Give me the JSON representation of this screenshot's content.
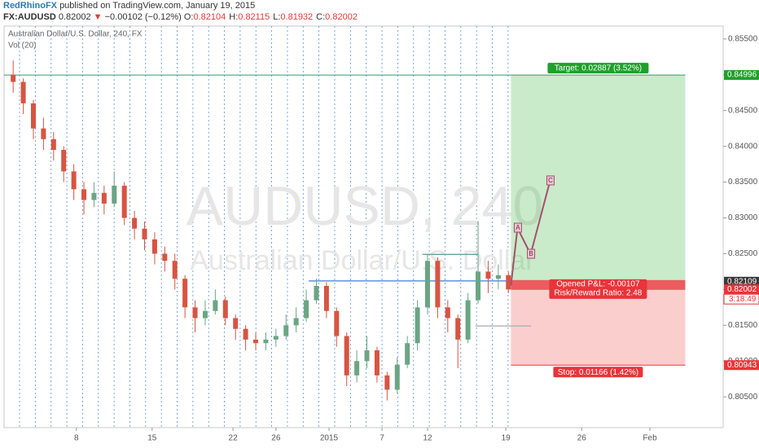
{
  "header": {
    "author": "RedRhinoFX",
    "published": "published on TradingView.com, January 19, 2015",
    "symbol": "FX:AUDUSD",
    "last": "0.82002",
    "arrow": "▼",
    "change": "−0.00102 (−0.12%)",
    "ohlc": [
      {
        "key": "O:",
        "value": "0.82104"
      },
      {
        "key": "H:",
        "value": "0.82115"
      },
      {
        "key": "L:",
        "value": "0.81932"
      },
      {
        "key": "C:",
        "value": "0.82002"
      }
    ]
  },
  "chart_data": {
    "type": "candlestick",
    "title": "Australian Dollar/U.S. Dollar, 240, FX",
    "indicator": "Vol (20)",
    "watermark": "AUDUSD, 240",
    "watermark_subtitle": "Australian Dollar/U.S. Dollar",
    "x": [
      2,
      6,
      10,
      14,
      18,
      22,
      26,
      30,
      34,
      38,
      42,
      46,
      50,
      54,
      58,
      62,
      66,
      70,
      74,
      78,
      82,
      86,
      90,
      94,
      98,
      102,
      106,
      110,
      114,
      118,
      122,
      126,
      130,
      134,
      138,
      142,
      146,
      150,
      154,
      158,
      162,
      166,
      170,
      174,
      178,
      182,
      186,
      190,
      194,
      198
    ],
    "open": [
      0.85,
      0.849,
      0.846,
      0.8425,
      0.841,
      0.8395,
      0.8365,
      0.834,
      0.8325,
      0.8335,
      0.832,
      0.8345,
      0.83,
      0.8285,
      0.827,
      0.825,
      0.824,
      0.8215,
      0.8175,
      0.816,
      0.817,
      0.8185,
      0.816,
      0.8145,
      0.813,
      0.8125,
      0.813,
      0.8135,
      0.815,
      0.816,
      0.8185,
      0.8205,
      0.817,
      0.8135,
      0.808,
      0.81,
      0.8115,
      0.808,
      0.806,
      0.8095,
      0.8125,
      0.8175,
      0.824,
      0.8175,
      0.816,
      0.813,
      0.8185,
      0.8225,
      0.8215,
      0.822
    ],
    "high": [
      0.852,
      0.8495,
      0.8465,
      0.844,
      0.842,
      0.84,
      0.8375,
      0.835,
      0.835,
      0.8345,
      0.8365,
      0.835,
      0.831,
      0.8295,
      0.828,
      0.826,
      0.825,
      0.822,
      0.8185,
      0.8185,
      0.82,
      0.819,
      0.8165,
      0.815,
      0.814,
      0.814,
      0.8145,
      0.8165,
      0.8175,
      0.82,
      0.8215,
      0.821,
      0.8175,
      0.814,
      0.8115,
      0.8135,
      0.812,
      0.8085,
      0.8105,
      0.8135,
      0.8185,
      0.825,
      0.8245,
      0.8185,
      0.8165,
      0.8195,
      0.8295,
      0.824,
      0.8235,
      0.8225
    ],
    "low": [
      0.8475,
      0.8445,
      0.841,
      0.8395,
      0.838,
      0.835,
      0.8325,
      0.8305,
      0.8315,
      0.8305,
      0.8315,
      0.829,
      0.827,
      0.8255,
      0.8235,
      0.8225,
      0.82,
      0.816,
      0.814,
      0.815,
      0.8165,
      0.815,
      0.813,
      0.8115,
      0.8115,
      0.8115,
      0.812,
      0.813,
      0.814,
      0.8155,
      0.818,
      0.816,
      0.812,
      0.8065,
      0.807,
      0.809,
      0.807,
      0.8045,
      0.8055,
      0.809,
      0.8115,
      0.8165,
      0.816,
      0.814,
      0.809,
      0.8125,
      0.818,
      0.8195,
      0.82,
      0.8195
    ],
    "close": [
      0.849,
      0.846,
      0.8425,
      0.841,
      0.8395,
      0.8365,
      0.834,
      0.8325,
      0.8335,
      0.832,
      0.8345,
      0.83,
      0.8285,
      0.827,
      0.825,
      0.824,
      0.8215,
      0.8175,
      0.816,
      0.817,
      0.8185,
      0.816,
      0.8145,
      0.813,
      0.8125,
      0.813,
      0.8135,
      0.815,
      0.816,
      0.8185,
      0.8205,
      0.817,
      0.8135,
      0.808,
      0.81,
      0.8115,
      0.808,
      0.806,
      0.8095,
      0.8125,
      0.8175,
      0.824,
      0.8175,
      0.816,
      0.813,
      0.8185,
      0.8225,
      0.8215,
      0.822,
      0.82
    ],
    "up_color": "#6ba583",
    "down_color": "#d75442",
    "xlim": [
      -1.6,
      283
    ],
    "xticks": [
      {
        "value": 27,
        "label": "8"
      },
      {
        "value": 57,
        "label": "15"
      },
      {
        "value": 89,
        "label": "22"
      },
      {
        "value": 106,
        "label": "26"
      },
      {
        "value": 127,
        "label": "2015"
      },
      {
        "value": 148,
        "label": "7"
      },
      {
        "value": 166,
        "label": "12"
      },
      {
        "value": 197,
        "label": "19"
      },
      {
        "value": 227,
        "label": "26"
      },
      {
        "value": 254,
        "label": "Feb"
      }
    ],
    "ylim": [
      0.8007,
      0.8568
    ],
    "yticks": [
      {
        "value": 0.855,
        "label": "0.85500"
      },
      {
        "value": 0.85,
        "label": "0.85000"
      },
      {
        "value": 0.845,
        "label": "0.84500"
      },
      {
        "value": 0.84,
        "label": "0.84000"
      },
      {
        "value": 0.835,
        "label": "0.83500"
      },
      {
        "value": 0.83,
        "label": "0.83000"
      },
      {
        "value": 0.825,
        "label": "0.82500"
      },
      {
        "value": 0.82,
        "label": "0.82000"
      },
      {
        "value": 0.815,
        "label": "0.81500"
      },
      {
        "value": 0.81,
        "label": "0.81000"
      },
      {
        "value": 0.805,
        "label": "0.80500"
      }
    ],
    "position": {
      "x": [
        199,
        268
      ],
      "entry": 0.82109,
      "target": 0.84996,
      "stop": 0.80943,
      "target_label": "Target: 0.02887 (3.52%)",
      "stop_label": "Stop: 0.01166 (1.42%)",
      "pnl_label": "Opened P&L: -0.00107",
      "rr_label": "Risk/Reward Ratio: 2.48"
    },
    "levels": [
      {
        "y": 0.8212,
        "x": [
          119,
          199
        ],
        "color": "#3d7fd6"
      },
      {
        "y": 0.8249,
        "x": [
          164,
          186
        ],
        "color": "#5aa8a0"
      },
      {
        "y": 0.8149,
        "x": [
          185,
          207
        ],
        "color": "#b0b0b0"
      }
    ],
    "pattern": {
      "color": "#a5506e",
      "points": [
        {
          "x": 199,
          "y": 0.82056
        },
        {
          "x": 201.6,
          "y": 0.82858,
          "label": "A"
        },
        {
          "x": 206.8,
          "y": 0.82493,
          "label": "B"
        },
        {
          "x": 214.5,
          "y": 0.83518,
          "label": "C"
        }
      ]
    },
    "price_tags": [
      {
        "value": 0.84996,
        "color": "#1fa02a"
      },
      {
        "value": 0.82109,
        "color": "#3a3a3a"
      },
      {
        "value": 0.82002,
        "color": "#e8343a"
      },
      {
        "value": 0.80943,
        "color": "#e8343a"
      }
    ],
    "countdown": "3:18:49"
  }
}
